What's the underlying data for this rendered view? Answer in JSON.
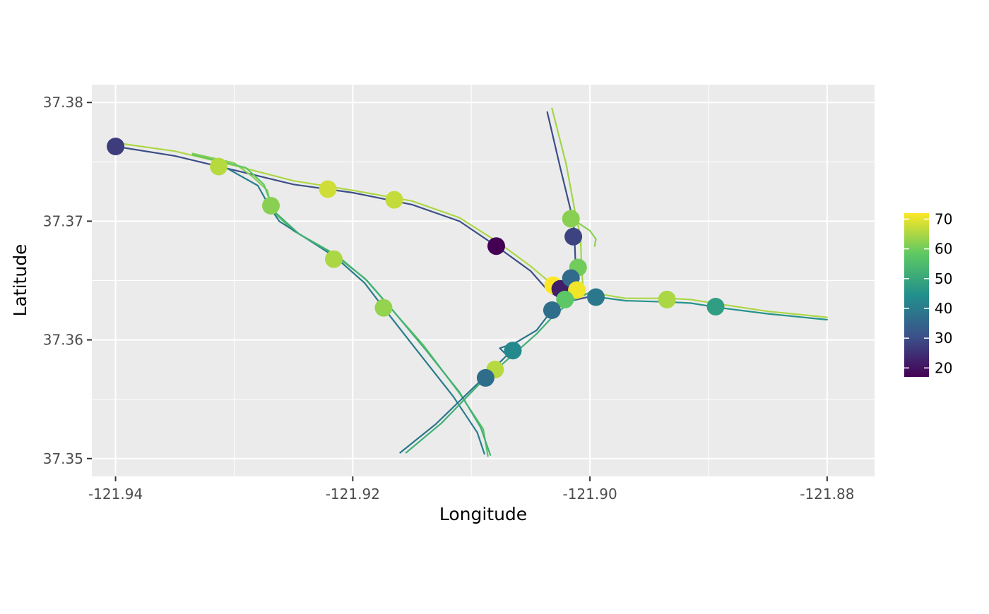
{
  "chart_data": {
    "type": "scatter",
    "title": "",
    "xlabel": "Longitude",
    "ylabel": "Latitude",
    "xlim": [
      -121.942,
      -121.876
    ],
    "ylim": [
      37.3485,
      37.3815
    ],
    "x_ticks": [
      -121.94,
      -121.92,
      -121.9,
      -121.88
    ],
    "x_tick_labels": [
      "-121.94",
      "-121.92",
      "-121.90",
      "-121.88"
    ],
    "y_ticks": [
      37.35,
      37.36,
      37.37,
      37.38
    ],
    "y_tick_labels": [
      "37.35",
      "37.36",
      "37.37",
      "37.38"
    ],
    "grid": true,
    "legend": {
      "position": "right",
      "type": "colorbar",
      "min": 17,
      "max": 72,
      "ticks": [
        20,
        30,
        40,
        50,
        60,
        70
      ],
      "tick_labels": [
        "20",
        "30",
        "40",
        "50",
        "60",
        "70"
      ]
    },
    "points": [
      {
        "x": -121.94,
        "y": 37.3763,
        "value": 27
      },
      {
        "x": -121.9313,
        "y": 37.3746,
        "value": 66
      },
      {
        "x": -121.9269,
        "y": 37.3713,
        "value": 62
      },
      {
        "x": -121.9221,
        "y": 37.3727,
        "value": 68
      },
      {
        "x": -121.9165,
        "y": 37.3718,
        "value": 67
      },
      {
        "x": -121.9216,
        "y": 37.3668,
        "value": 65
      },
      {
        "x": -121.9174,
        "y": 37.3627,
        "value": 63
      },
      {
        "x": -121.9079,
        "y": 37.3679,
        "value": 17
      },
      {
        "x": -121.9016,
        "y": 37.3702,
        "value": 62
      },
      {
        "x": -121.9014,
        "y": 37.3687,
        "value": 28
      },
      {
        "x": -121.901,
        "y": 37.3661,
        "value": 60
      },
      {
        "x": -121.9031,
        "y": 37.3646,
        "value": 72
      },
      {
        "x": -121.9025,
        "y": 37.3643,
        "value": 22
      },
      {
        "x": -121.9016,
        "y": 37.3652,
        "value": 36
      },
      {
        "x": -121.9011,
        "y": 37.3642,
        "value": 71
      },
      {
        "x": -121.9021,
        "y": 37.3634,
        "value": 58
      },
      {
        "x": -121.8995,
        "y": 37.3636,
        "value": 39
      },
      {
        "x": -121.9032,
        "y": 37.3625,
        "value": 37
      },
      {
        "x": -121.8935,
        "y": 37.3634,
        "value": 65
      },
      {
        "x": -121.8894,
        "y": 37.3628,
        "value": 48
      },
      {
        "x": -121.9065,
        "y": 37.3591,
        "value": 43
      },
      {
        "x": -121.908,
        "y": 37.3575,
        "value": 66
      },
      {
        "x": -121.9088,
        "y": 37.3568,
        "value": 37
      }
    ],
    "tracks": [
      {
        "value": 30,
        "points": [
          [
            -121.94,
            37.3763
          ],
          [
            -121.935,
            37.3755
          ],
          [
            -121.93,
            37.3743
          ],
          [
            -121.925,
            37.3731
          ],
          [
            -121.92,
            37.3724
          ],
          [
            -121.915,
            37.3714
          ],
          [
            -121.911,
            37.37
          ],
          [
            -121.9079,
            37.3679
          ],
          [
            -121.905,
            37.3658
          ],
          [
            -121.9035,
            37.3641
          ],
          [
            -121.902,
            37.3632
          ],
          [
            -121.9002,
            37.3636
          ]
        ]
      },
      {
        "value": 65,
        "points": [
          [
            -121.94,
            37.3766
          ],
          [
            -121.935,
            37.3759
          ],
          [
            -121.93,
            37.3747
          ],
          [
            -121.925,
            37.3734
          ],
          [
            -121.92,
            37.3726
          ],
          [
            -121.915,
            37.3717
          ],
          [
            -121.911,
            37.3703
          ],
          [
            -121.9077,
            37.3682
          ],
          [
            -121.905,
            37.3662
          ],
          [
            -121.9032,
            37.3647
          ],
          [
            -121.9012,
            37.3641
          ],
          [
            -121.9,
            37.3638
          ]
        ]
      },
      {
        "value": 62,
        "points": [
          [
            -121.9335,
            37.3757
          ],
          [
            -121.93,
            37.3749
          ],
          [
            -121.9285,
            37.3738
          ],
          [
            -121.9272,
            37.3726
          ],
          [
            -121.9269,
            37.3713
          ]
        ]
      },
      {
        "value": 58,
        "points": [
          [
            -121.9335,
            37.3756
          ],
          [
            -121.929,
            37.3745
          ],
          [
            -121.9275,
            37.3731
          ],
          [
            -121.927,
            37.3718
          ],
          [
            -121.9265,
            37.3706
          ],
          [
            -121.925,
            37.3692
          ],
          [
            -121.922,
            37.3675
          ],
          [
            -121.919,
            37.3652
          ],
          [
            -121.917,
            37.3629
          ],
          [
            -121.914,
            37.3595
          ],
          [
            -121.911,
            37.3555
          ],
          [
            -121.909,
            37.3525
          ],
          [
            -121.9086,
            37.3502
          ]
        ]
      },
      {
        "value": 40,
        "points": [
          [
            -121.9305,
            37.3744
          ],
          [
            -121.928,
            37.373
          ],
          [
            -121.927,
            37.3712
          ],
          [
            -121.9262,
            37.37
          ],
          [
            -121.924,
            37.3686
          ],
          [
            -121.9215,
            37.367
          ],
          [
            -121.919,
            37.3648
          ],
          [
            -121.9174,
            37.3627
          ],
          [
            -121.9145,
            37.359
          ],
          [
            -121.9115,
            37.3552
          ],
          [
            -121.9095,
            37.3522
          ],
          [
            -121.9089,
            37.3504
          ]
        ]
      },
      {
        "value": 52,
        "points": [
          [
            -121.9266,
            37.3708
          ],
          [
            -121.9245,
            37.3689
          ],
          [
            -121.9212,
            37.367
          ],
          [
            -121.9188,
            37.365
          ],
          [
            -121.9168,
            37.3627
          ],
          [
            -121.9138,
            37.3591
          ],
          [
            -121.911,
            37.3556
          ],
          [
            -121.9092,
            37.3526
          ],
          [
            -121.9084,
            37.3503
          ]
        ]
      },
      {
        "value": 30,
        "points": [
          [
            -121.9036,
            37.3792
          ],
          [
            -121.9025,
            37.3745
          ],
          [
            -121.9014,
            37.37
          ],
          [
            -121.9013,
            37.3686
          ],
          [
            -121.9012,
            37.366
          ],
          [
            -121.901,
            37.3645
          ]
        ]
      },
      {
        "value": 64,
        "points": [
          [
            -121.9032,
            37.3795
          ],
          [
            -121.902,
            37.3748
          ],
          [
            -121.9012,
            37.3705
          ],
          [
            -121.9008,
            37.3688
          ],
          [
            -121.9007,
            37.3661
          ],
          [
            -121.9006,
            37.3646
          ]
        ]
      },
      {
        "value": 62,
        "points": [
          [
            -121.9012,
            37.37
          ],
          [
            -121.9,
            37.3692
          ],
          [
            -121.8995,
            37.3685
          ],
          [
            -121.8996,
            37.3679
          ]
        ]
      },
      {
        "value": 38,
        "points": [
          [
            -121.916,
            37.3505
          ],
          [
            -121.913,
            37.3529
          ],
          [
            -121.91,
            37.3558
          ],
          [
            -121.907,
            37.3587
          ],
          [
            -121.9076,
            37.3593
          ],
          [
            -121.9062,
            37.3598
          ],
          [
            -121.9045,
            37.3608
          ],
          [
            -121.9032,
            37.3625
          ],
          [
            -121.901,
            37.3636
          ]
        ]
      },
      {
        "value": 52,
        "points": [
          [
            -121.9155,
            37.3505
          ],
          [
            -121.9125,
            37.353
          ],
          [
            -121.9095,
            37.3561
          ],
          [
            -121.907,
            37.3583
          ],
          [
            -121.9045,
            37.3605
          ],
          [
            -121.903,
            37.3621
          ],
          [
            -121.9015,
            37.3633
          ],
          [
            -121.9,
            37.364
          ]
        ]
      },
      {
        "value": 45,
        "points": [
          [
            -121.9,
            37.3637
          ],
          [
            -121.897,
            37.3633
          ],
          [
            -121.8935,
            37.3632
          ],
          [
            -121.8915,
            37.3631
          ],
          [
            -121.889,
            37.3627
          ],
          [
            -121.885,
            37.3622
          ],
          [
            -121.88,
            37.3617
          ]
        ]
      },
      {
        "value": 65,
        "points": [
          [
            -121.9,
            37.364
          ],
          [
            -121.897,
            37.3635
          ],
          [
            -121.8935,
            37.3635
          ],
          [
            -121.8915,
            37.3634
          ],
          [
            -121.889,
            37.363
          ],
          [
            -121.885,
            37.3624
          ],
          [
            -121.88,
            37.3619
          ]
        ]
      }
    ]
  }
}
